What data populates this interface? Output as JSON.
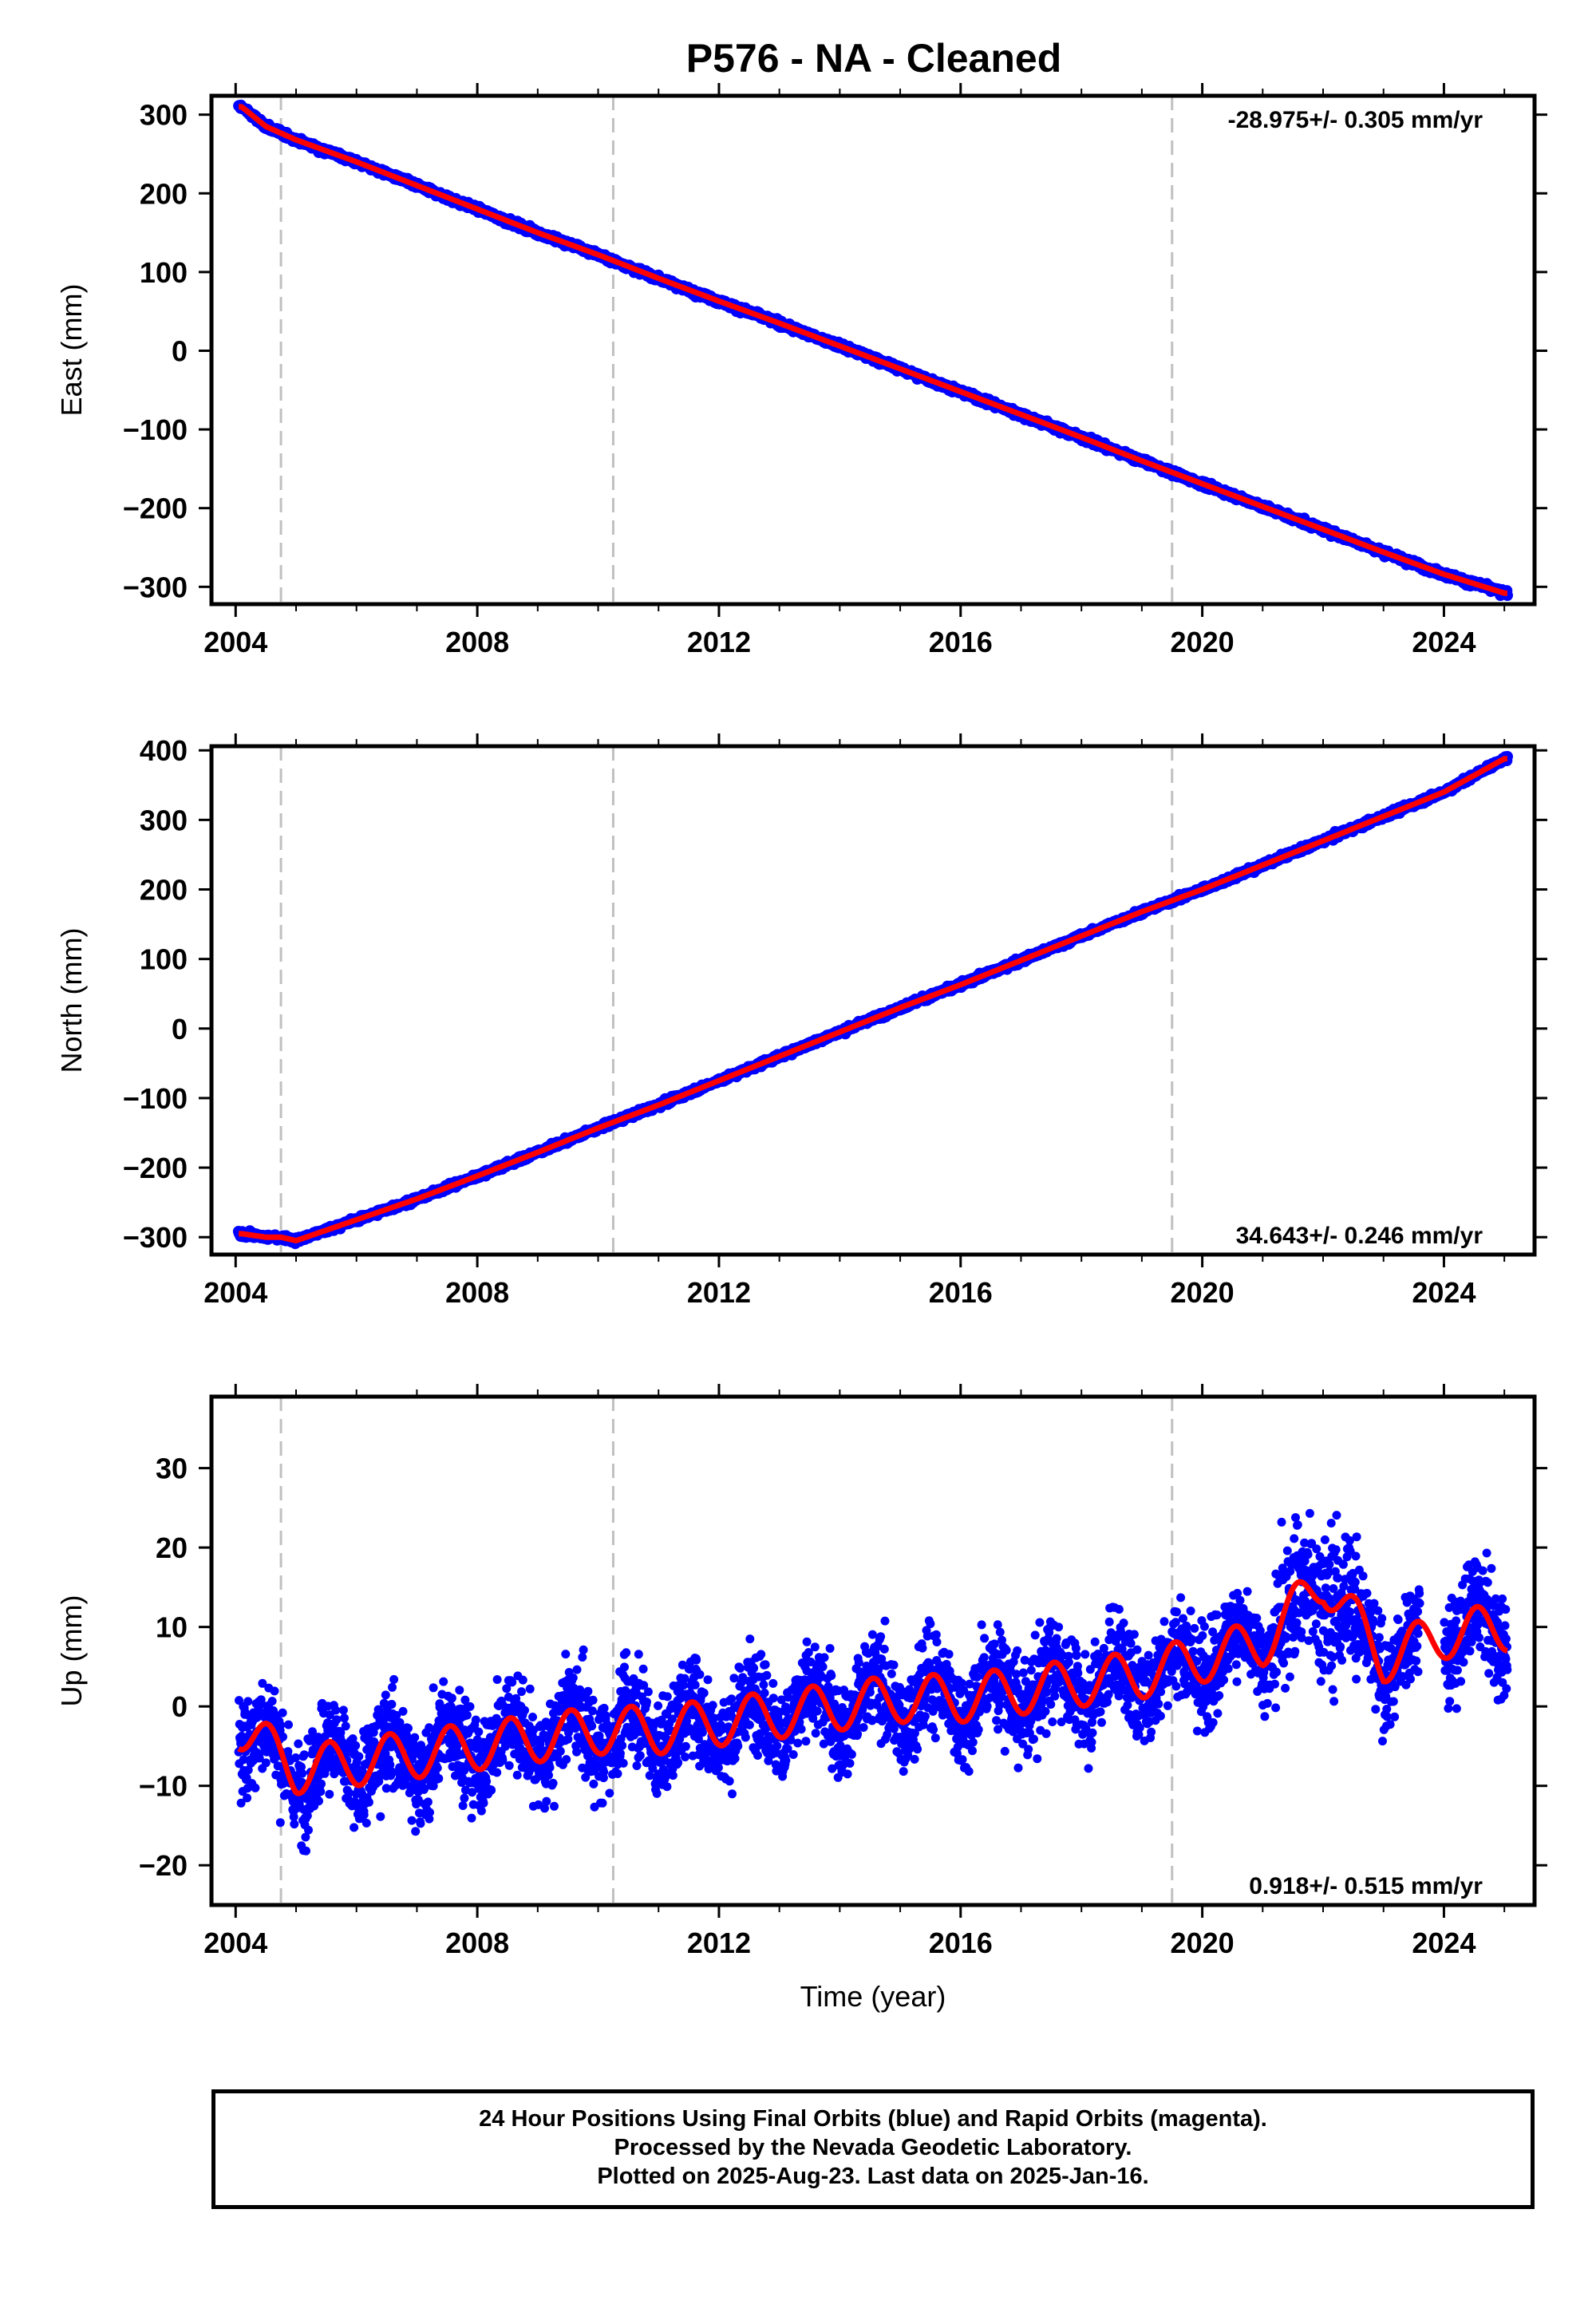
{
  "title": "P576  - NA - Cleaned",
  "colors": {
    "points": "#0000ff",
    "model": "#ff0000",
    "steps": "#c0c0c0"
  },
  "xlabel": "Time (year)",
  "xticks": [
    "2004",
    "2008",
    "2012",
    "2016",
    "2020",
    "2024"
  ],
  "step_epochs": [
    2004.75,
    2010.25,
    2019.5
  ],
  "chart_data": [
    {
      "type": "scatter",
      "ylabel": "East (mm)",
      "rate": "-28.975+/- 0.305 mm/yr",
      "rate_position": "top-right",
      "xlim": [
        2003.6,
        2025.5
      ],
      "ylim": [
        -322,
        324
      ],
      "yticks": [
        300,
        200,
        100,
        0,
        -100,
        -200,
        -300
      ],
      "velocity_mm_per_yr": -28.975,
      "series": [
        {
          "x": [
            2004.1,
            2004.5,
            2005.0,
            2006.0,
            2007.0,
            2008.0,
            2009.0,
            2010.0,
            2011.0,
            2012.0,
            2013.0,
            2014.0,
            2015.0,
            2016.0,
            2017.0,
            2018.0,
            2019.0,
            2020.0,
            2021.0,
            2022.0,
            2023.0,
            2024.0,
            2025.0
          ],
          "y": [
            310,
            285,
            268,
            240,
            210,
            180,
            150,
            122,
            92,
            63,
            35,
            6,
            -23,
            -52,
            -81,
            -110,
            -140,
            -169,
            -198,
            -227,
            -256,
            -284,
            -308
          ]
        }
      ]
    },
    {
      "type": "scatter",
      "ylabel": "North (mm)",
      "rate": "34.643+/- 0.246 mm/yr",
      "rate_position": "bottom-right",
      "xlim": [
        2003.6,
        2025.5
      ],
      "ylim": [
        -325,
        406
      ],
      "yticks": [
        400,
        300,
        200,
        100,
        0,
        -100,
        -200,
        -300
      ],
      "velocity_mm_per_yr": 34.643,
      "series": [
        {
          "x": [
            2004.1,
            2004.5,
            2004.75,
            2005.0,
            2006.0,
            2007.0,
            2008.0,
            2009.0,
            2010.0,
            2011.0,
            2012.0,
            2013.0,
            2014.0,
            2015.0,
            2016.0,
            2017.0,
            2018.0,
            2019.0,
            2020.0,
            2021.0,
            2022.0,
            2023.0,
            2024.0,
            2025.0
          ],
          "y": [
            -295,
            -300,
            -300,
            -305,
            -275,
            -245,
            -212,
            -178,
            -143,
            -110,
            -75,
            -40,
            -5,
            30,
            63,
            98,
            133,
            168,
            200,
            235,
            270,
            305,
            340,
            388
          ]
        }
      ]
    },
    {
      "type": "scatter",
      "ylabel": "Up (mm)",
      "rate": "0.918+/- 0.515 mm/yr",
      "rate_position": "bottom-right",
      "xlim": [
        2003.6,
        2025.5
      ],
      "ylim": [
        -25,
        39
      ],
      "yticks": [
        30,
        20,
        10,
        0,
        -10,
        -20
      ],
      "velocity_mm_per_yr": 0.918,
      "annual_amplitude_mm": 3,
      "series": [
        {
          "x": [
            2004.0,
            2005.0,
            2006.0,
            2007.0,
            2008.0,
            2009.0,
            2010.0,
            2011.0,
            2012.0,
            2013.0,
            2014.0,
            2015.0,
            2016.0,
            2017.0,
            2018.0,
            2019.0,
            2020.0,
            2021.0,
            2022.0,
            2023.0,
            2024.0,
            2025.0
          ],
          "y": [
            -2,
            -8,
            -7,
            -6,
            -5,
            -4,
            -3,
            -3,
            -2,
            -1,
            0,
            1,
            1,
            2,
            3,
            4,
            6,
            8,
            16,
            6,
            9,
            10
          ]
        }
      ]
    }
  ],
  "footer": {
    "line1": "24 Hour Positions Using Final Orbits (blue) and Rapid Orbits (magenta).",
    "line2": "Processed by the Nevada Geodetic Laboratory.",
    "line3": "Plotted on 2025-Aug-23. Last data on 2025-Jan-16."
  }
}
